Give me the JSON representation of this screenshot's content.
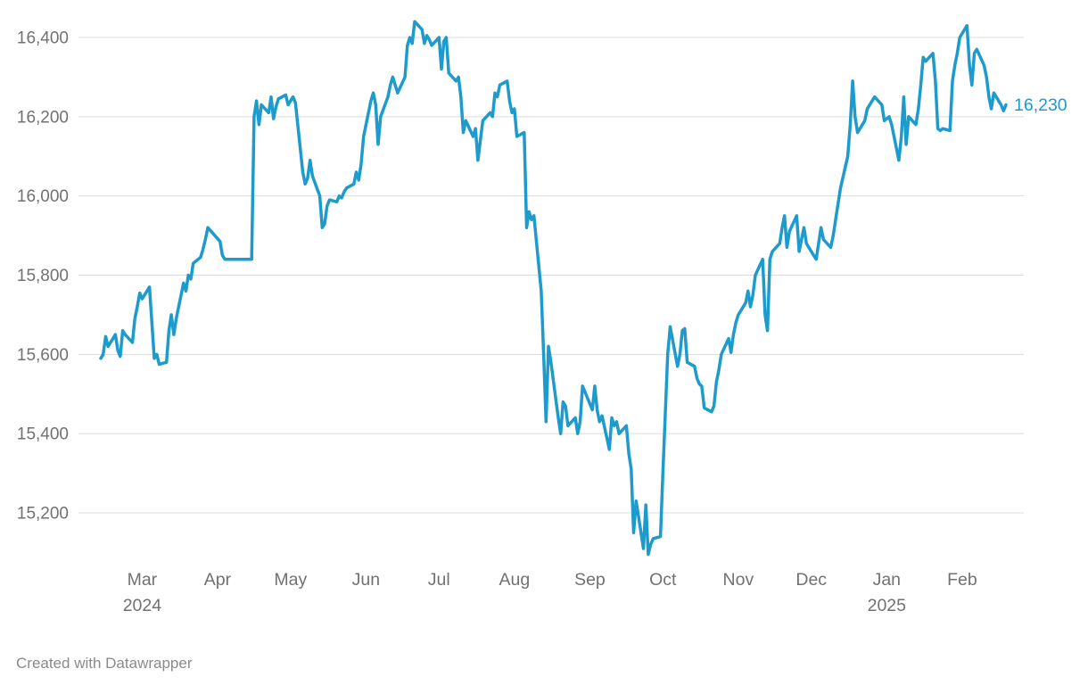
{
  "chart_data": {
    "type": "line",
    "x_range": [
      "2024-02-13",
      "2025-02-19"
    ],
    "ylim": [
      15050,
      16460
    ],
    "grid": true,
    "legend": "none",
    "end_label": "16,230",
    "colors": {
      "line": "#1e9bcd",
      "grid": "#dcdcdc",
      "axis_text": "#717171",
      "footer_text": "#8a8a8a",
      "background": "#ffffff"
    },
    "y_ticks": [
      {
        "value": 15200,
        "label": "15,200"
      },
      {
        "value": 15400,
        "label": "15,400"
      },
      {
        "value": 15600,
        "label": "15,600"
      },
      {
        "value": 15800,
        "label": "15,800"
      },
      {
        "value": 16000,
        "label": "16,000"
      },
      {
        "value": 16200,
        "label": "16,200"
      },
      {
        "value": 16400,
        "label": "16,400"
      }
    ],
    "x_ticks": [
      {
        "date": "2024-03-01",
        "label": "Mar",
        "year": "2024"
      },
      {
        "date": "2024-04-01",
        "label": "Apr"
      },
      {
        "date": "2024-05-01",
        "label": "May"
      },
      {
        "date": "2024-06-01",
        "label": "Jun"
      },
      {
        "date": "2024-07-01",
        "label": "Jul"
      },
      {
        "date": "2024-08-01",
        "label": "Aug"
      },
      {
        "date": "2024-09-01",
        "label": "Sep"
      },
      {
        "date": "2024-10-01",
        "label": "Oct"
      },
      {
        "date": "2024-11-01",
        "label": "Nov"
      },
      {
        "date": "2024-12-01",
        "label": "Dec"
      },
      {
        "date": "2025-01-01",
        "label": "Jan",
        "year": "2025"
      },
      {
        "date": "2025-02-01",
        "label": "Feb"
      }
    ],
    "points": [
      [
        "2024-02-13",
        15590
      ],
      [
        "2024-02-14",
        15600
      ],
      [
        "2024-02-15",
        15645
      ],
      [
        "2024-02-16",
        15620
      ],
      [
        "2024-02-19",
        15650
      ],
      [
        "2024-02-20",
        15610
      ],
      [
        "2024-02-21",
        15595
      ],
      [
        "2024-02-22",
        15660
      ],
      [
        "2024-02-23",
        15650
      ],
      [
        "2024-02-26",
        15630
      ],
      [
        "2024-02-27",
        15690
      ],
      [
        "2024-02-28",
        15720
      ],
      [
        "2024-02-29",
        15755
      ],
      [
        "2024-03-01",
        15740
      ],
      [
        "2024-03-04",
        15770
      ],
      [
        "2024-03-05",
        15680
      ],
      [
        "2024-03-06",
        15590
      ],
      [
        "2024-03-07",
        15600
      ],
      [
        "2024-03-08",
        15575
      ],
      [
        "2024-03-11",
        15580
      ],
      [
        "2024-03-12",
        15660
      ],
      [
        "2024-03-13",
        15700
      ],
      [
        "2024-03-14",
        15650
      ],
      [
        "2024-03-15",
        15690
      ],
      [
        "2024-03-18",
        15780
      ],
      [
        "2024-03-19",
        15760
      ],
      [
        "2024-03-20",
        15800
      ],
      [
        "2024-03-21",
        15790
      ],
      [
        "2024-03-22",
        15830
      ],
      [
        "2024-03-25",
        15845
      ],
      [
        "2024-03-26",
        15865
      ],
      [
        "2024-03-27",
        15890
      ],
      [
        "2024-03-28",
        15920
      ],
      [
        "2024-04-02",
        15885
      ],
      [
        "2024-04-03",
        15850
      ],
      [
        "2024-04-04",
        15840
      ],
      [
        "2024-04-08",
        15840
      ],
      [
        "2024-04-10",
        15840
      ],
      [
        "2024-04-12",
        15840
      ],
      [
        "2024-04-15",
        15840
      ],
      [
        "2024-04-16",
        16200
      ],
      [
        "2024-04-17",
        16240
      ],
      [
        "2024-04-18",
        16180
      ],
      [
        "2024-04-19",
        16230
      ],
      [
        "2024-04-22",
        16210
      ],
      [
        "2024-04-23",
        16250
      ],
      [
        "2024-04-24",
        16195
      ],
      [
        "2024-04-25",
        16225
      ],
      [
        "2024-04-26",
        16245
      ],
      [
        "2024-04-29",
        16255
      ],
      [
        "2024-04-30",
        16230
      ],
      [
        "2024-05-02",
        16250
      ],
      [
        "2024-05-03",
        16235
      ],
      [
        "2024-05-06",
        16060
      ],
      [
        "2024-05-07",
        16030
      ],
      [
        "2024-05-08",
        16045
      ],
      [
        "2024-05-09",
        16090
      ],
      [
        "2024-05-10",
        16050
      ],
      [
        "2024-05-13",
        16000
      ],
      [
        "2024-05-14",
        15920
      ],
      [
        "2024-05-15",
        15930
      ],
      [
        "2024-05-16",
        15975
      ],
      [
        "2024-05-17",
        15990
      ],
      [
        "2024-05-20",
        15985
      ],
      [
        "2024-05-21",
        16000
      ],
      [
        "2024-05-22",
        15995
      ],
      [
        "2024-05-23",
        16010
      ],
      [
        "2024-05-24",
        16020
      ],
      [
        "2024-05-27",
        16030
      ],
      [
        "2024-05-28",
        16060
      ],
      [
        "2024-05-29",
        16040
      ],
      [
        "2024-05-30",
        16080
      ],
      [
        "2024-05-31",
        16150
      ],
      [
        "2024-06-03",
        16240
      ],
      [
        "2024-06-04",
        16260
      ],
      [
        "2024-06-05",
        16230
      ],
      [
        "2024-06-06",
        16130
      ],
      [
        "2024-06-07",
        16200
      ],
      [
        "2024-06-10",
        16250
      ],
      [
        "2024-06-11",
        16280
      ],
      [
        "2024-06-12",
        16300
      ],
      [
        "2024-06-13",
        16280
      ],
      [
        "2024-06-14",
        16260
      ],
      [
        "2024-06-17",
        16300
      ],
      [
        "2024-06-18",
        16380
      ],
      [
        "2024-06-19",
        16400
      ],
      [
        "2024-06-20",
        16385
      ],
      [
        "2024-06-21",
        16440
      ],
      [
        "2024-06-24",
        16420
      ],
      [
        "2024-06-25",
        16385
      ],
      [
        "2024-06-26",
        16405
      ],
      [
        "2024-06-27",
        16395
      ],
      [
        "2024-06-28",
        16380
      ],
      [
        "2024-07-01",
        16400
      ],
      [
        "2024-07-02",
        16320
      ],
      [
        "2024-07-03",
        16390
      ],
      [
        "2024-07-04",
        16400
      ],
      [
        "2024-07-05",
        16310
      ],
      [
        "2024-07-08",
        16290
      ],
      [
        "2024-07-09",
        16300
      ],
      [
        "2024-07-10",
        16250
      ],
      [
        "2024-07-11",
        16160
      ],
      [
        "2024-07-12",
        16190
      ],
      [
        "2024-07-15",
        16150
      ],
      [
        "2024-07-16",
        16170
      ],
      [
        "2024-07-17",
        16090
      ],
      [
        "2024-07-18",
        16140
      ],
      [
        "2024-07-19",
        16190
      ],
      [
        "2024-07-22",
        16210
      ],
      [
        "2024-07-23",
        16200
      ],
      [
        "2024-07-24",
        16260
      ],
      [
        "2024-07-25",
        16250
      ],
      [
        "2024-07-26",
        16280
      ],
      [
        "2024-07-29",
        16290
      ],
      [
        "2024-07-30",
        16240
      ],
      [
        "2024-07-31",
        16210
      ],
      [
        "2024-08-01",
        16220
      ],
      [
        "2024-08-02",
        16150
      ],
      [
        "2024-08-05",
        16160
      ],
      [
        "2024-08-06",
        15920
      ],
      [
        "2024-08-07",
        15960
      ],
      [
        "2024-08-08",
        15940
      ],
      [
        "2024-08-09",
        15950
      ],
      [
        "2024-08-12",
        15760
      ],
      [
        "2024-08-13",
        15600
      ],
      [
        "2024-08-14",
        15430
      ],
      [
        "2024-08-15",
        15620
      ],
      [
        "2024-08-16",
        15580
      ],
      [
        "2024-08-19",
        15440
      ],
      [
        "2024-08-20",
        15400
      ],
      [
        "2024-08-21",
        15480
      ],
      [
        "2024-08-22",
        15470
      ],
      [
        "2024-08-23",
        15420
      ],
      [
        "2024-08-26",
        15440
      ],
      [
        "2024-08-27",
        15400
      ],
      [
        "2024-08-28",
        15430
      ],
      [
        "2024-08-29",
        15520
      ],
      [
        "2024-08-30",
        15505
      ],
      [
        "2024-09-02",
        15460
      ],
      [
        "2024-09-03",
        15520
      ],
      [
        "2024-09-04",
        15460
      ],
      [
        "2024-09-05",
        15430
      ],
      [
        "2024-09-06",
        15445
      ],
      [
        "2024-09-09",
        15360
      ],
      [
        "2024-09-10",
        15440
      ],
      [
        "2024-09-11",
        15420
      ],
      [
        "2024-09-12",
        15430
      ],
      [
        "2024-09-13",
        15400
      ],
      [
        "2024-09-16",
        15420
      ],
      [
        "2024-09-17",
        15350
      ],
      [
        "2024-09-18",
        15310
      ],
      [
        "2024-09-19",
        15150
      ],
      [
        "2024-09-20",
        15230
      ],
      [
        "2024-09-23",
        15110
      ],
      [
        "2024-09-24",
        15220
      ],
      [
        "2024-09-25",
        15095
      ],
      [
        "2024-09-26",
        15120
      ],
      [
        "2024-09-27",
        15135
      ],
      [
        "2024-09-30",
        15140
      ],
      [
        "2024-10-01",
        15300
      ],
      [
        "2024-10-02",
        15450
      ],
      [
        "2024-10-03",
        15600
      ],
      [
        "2024-10-04",
        15670
      ],
      [
        "2024-10-07",
        15570
      ],
      [
        "2024-10-08",
        15600
      ],
      [
        "2024-10-09",
        15660
      ],
      [
        "2024-10-10",
        15665
      ],
      [
        "2024-10-11",
        15580
      ],
      [
        "2024-10-14",
        15570
      ],
      [
        "2024-10-15",
        15540
      ],
      [
        "2024-10-16",
        15525
      ],
      [
        "2024-10-17",
        15520
      ],
      [
        "2024-10-18",
        15465
      ],
      [
        "2024-10-21",
        15455
      ],
      [
        "2024-10-22",
        15470
      ],
      [
        "2024-10-23",
        15530
      ],
      [
        "2024-10-24",
        15560
      ],
      [
        "2024-10-25",
        15600
      ],
      [
        "2024-10-28",
        15640
      ],
      [
        "2024-10-29",
        15605
      ],
      [
        "2024-10-30",
        15650
      ],
      [
        "2024-10-31",
        15680
      ],
      [
        "2024-11-01",
        15700
      ],
      [
        "2024-11-04",
        15730
      ],
      [
        "2024-11-05",
        15760
      ],
      [
        "2024-11-06",
        15720
      ],
      [
        "2024-11-07",
        15750
      ],
      [
        "2024-11-08",
        15800
      ],
      [
        "2024-11-11",
        15840
      ],
      [
        "2024-11-12",
        15700
      ],
      [
        "2024-11-13",
        15660
      ],
      [
        "2024-11-14",
        15840
      ],
      [
        "2024-11-15",
        15860
      ],
      [
        "2024-11-18",
        15880
      ],
      [
        "2024-11-19",
        15920
      ],
      [
        "2024-11-20",
        15950
      ],
      [
        "2024-11-21",
        15870
      ],
      [
        "2024-11-22",
        15910
      ],
      [
        "2024-11-25",
        15950
      ],
      [
        "2024-11-26",
        15860
      ],
      [
        "2024-11-27",
        15890
      ],
      [
        "2024-11-28",
        15920
      ],
      [
        "2024-11-29",
        15880
      ],
      [
        "2024-12-02",
        15850
      ],
      [
        "2024-12-03",
        15840
      ],
      [
        "2024-12-04",
        15880
      ],
      [
        "2024-12-05",
        15920
      ],
      [
        "2024-12-06",
        15890
      ],
      [
        "2024-12-09",
        15870
      ],
      [
        "2024-12-10",
        15900
      ],
      [
        "2024-12-11",
        15940
      ],
      [
        "2024-12-12",
        15980
      ],
      [
        "2024-12-13",
        16020
      ],
      [
        "2024-12-16",
        16100
      ],
      [
        "2024-12-17",
        16180
      ],
      [
        "2024-12-18",
        16290
      ],
      [
        "2024-12-19",
        16200
      ],
      [
        "2024-12-20",
        16160
      ],
      [
        "2024-12-23",
        16190
      ],
      [
        "2024-12-24",
        16220
      ],
      [
        "2024-12-27",
        16250
      ],
      [
        "2024-12-30",
        16230
      ],
      [
        "2024-12-31",
        16190
      ],
      [
        "2025-01-02",
        16200
      ],
      [
        "2025-01-03",
        16180
      ],
      [
        "2025-01-06",
        16090
      ],
      [
        "2025-01-07",
        16150
      ],
      [
        "2025-01-08",
        16250
      ],
      [
        "2025-01-09",
        16130
      ],
      [
        "2025-01-10",
        16200
      ],
      [
        "2025-01-13",
        16180
      ],
      [
        "2025-01-14",
        16220
      ],
      [
        "2025-01-15",
        16280
      ],
      [
        "2025-01-16",
        16350
      ],
      [
        "2025-01-17",
        16340
      ],
      [
        "2025-01-20",
        16360
      ],
      [
        "2025-01-21",
        16290
      ],
      [
        "2025-01-22",
        16170
      ],
      [
        "2025-01-23",
        16165
      ],
      [
        "2025-01-24",
        16170
      ],
      [
        "2025-01-27",
        16165
      ],
      [
        "2025-01-28",
        16290
      ],
      [
        "2025-01-29",
        16330
      ],
      [
        "2025-01-30",
        16360
      ],
      [
        "2025-01-31",
        16400
      ],
      [
        "2025-02-03",
        16430
      ],
      [
        "2025-02-04",
        16330
      ],
      [
        "2025-02-05",
        16280
      ],
      [
        "2025-02-06",
        16360
      ],
      [
        "2025-02-07",
        16370
      ],
      [
        "2025-02-10",
        16330
      ],
      [
        "2025-02-11",
        16300
      ],
      [
        "2025-02-12",
        16250
      ],
      [
        "2025-02-13",
        16220
      ],
      [
        "2025-02-14",
        16260
      ],
      [
        "2025-02-17",
        16230
      ],
      [
        "2025-02-18",
        16215
      ],
      [
        "2025-02-19",
        16230
      ]
    ]
  },
  "footer": {
    "attribution": "Created with Datawrapper"
  }
}
